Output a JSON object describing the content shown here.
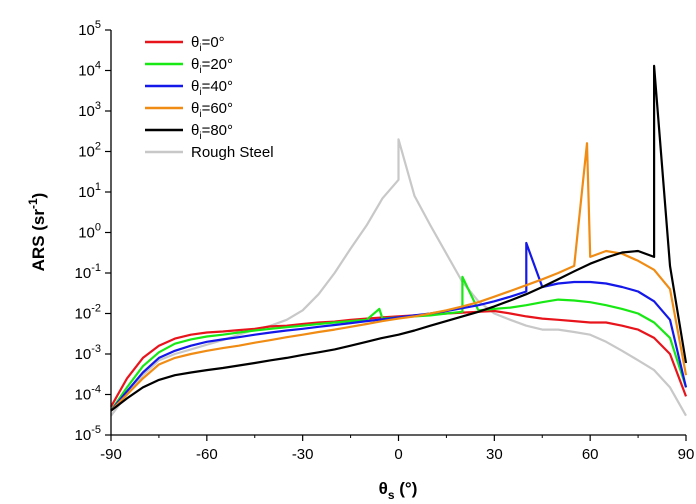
{
  "chart_data": {
    "type": "line",
    "title": "",
    "xlabel": "θs (°)",
    "ylabel": "ARS (sr⁻¹)",
    "xlim": [
      -90,
      90
    ],
    "ylim_log10": [
      -5,
      5
    ],
    "yscale": "log",
    "x_ticks": [
      "-90",
      "-60",
      "-30",
      "0",
      "30",
      "60",
      "90"
    ],
    "x_tick_values": [
      -90,
      -60,
      -30,
      0,
      30,
      60,
      90
    ],
    "y_ticks": [
      "10-5",
      "10-4",
      "10-3",
      "10-2",
      "10-1",
      "100",
      "101",
      "102",
      "103",
      "104",
      "105"
    ],
    "grid": false,
    "legend_position": "top-left",
    "x": [
      -90,
      -85,
      -80,
      -75,
      -70,
      -65,
      -60,
      -55,
      -50,
      -45,
      -40,
      -35,
      -30,
      -25,
      -20,
      -15,
      -10,
      -5,
      0,
      5,
      10,
      15,
      20,
      25,
      30,
      35,
      40,
      45,
      50,
      55,
      60,
      65,
      70,
      75,
      80,
      85,
      90
    ],
    "series": [
      {
        "name": "θi=0°",
        "color": "#e8141c",
        "values": [
          5e-05,
          0.00025,
          0.0008,
          0.0016,
          0.0024,
          0.003,
          0.0034,
          0.0036,
          0.0039,
          0.0042,
          0.0048,
          0.005,
          0.0055,
          0.006,
          0.0063,
          0.007,
          0.0075,
          0.008,
          0.0085,
          0.009,
          0.0095,
          0.01,
          0.0105,
          0.011,
          0.0115,
          0.01,
          0.0085,
          0.0075,
          0.007,
          0.0065,
          0.006,
          0.006,
          0.005,
          0.004,
          0.0025,
          0.001,
          9e-05
        ],
        "spikes": []
      },
      {
        "name": "θi=20°",
        "color": "#18e814",
        "values": [
          4e-05,
          0.00015,
          0.0005,
          0.0011,
          0.0018,
          0.0023,
          0.0027,
          0.003,
          0.0034,
          0.0038,
          0.0042,
          0.0046,
          0.005,
          0.0055,
          0.006,
          0.0065,
          0.007,
          0.0075,
          0.008,
          0.0085,
          0.009,
          0.01,
          0.011,
          0.012,
          0.013,
          0.014,
          0.016,
          0.019,
          0.022,
          0.021,
          0.019,
          0.016,
          0.013,
          0.01,
          0.006,
          0.0025,
          0.00015
        ],
        "spikes": [
          [
            -6,
            0.013
          ],
          [
            20,
            0.08
          ]
        ]
      },
      {
        "name": "θi=40°",
        "color": "#1418e8",
        "values": [
          4e-05,
          0.00012,
          0.00035,
          0.0008,
          0.0012,
          0.0016,
          0.002,
          0.0023,
          0.0026,
          0.003,
          0.0034,
          0.0038,
          0.0042,
          0.0047,
          0.0052,
          0.0058,
          0.0065,
          0.0072,
          0.008,
          0.009,
          0.01,
          0.0115,
          0.0135,
          0.016,
          0.02,
          0.026,
          0.035,
          0.045,
          0.055,
          0.06,
          0.06,
          0.055,
          0.045,
          0.035,
          0.02,
          0.007,
          0.00015
        ],
        "spikes": [
          [
            40,
            0.55
          ]
        ]
      },
      {
        "name": "θi=60°",
        "color": "#f08c14",
        "values": [
          4e-05,
          0.0001,
          0.00025,
          0.00055,
          0.0008,
          0.001,
          0.0012,
          0.0014,
          0.0016,
          0.0019,
          0.0022,
          0.0026,
          0.003,
          0.0035,
          0.004,
          0.0047,
          0.0055,
          0.0065,
          0.0075,
          0.0085,
          0.01,
          0.012,
          0.015,
          0.019,
          0.026,
          0.036,
          0.05,
          0.07,
          0.1,
          0.15,
          0.25,
          0.35,
          0.3,
          0.2,
          0.12,
          0.04,
          0.0003
        ],
        "spikes": [
          [
            59,
            160
          ]
        ]
      },
      {
        "name": "θi=80°",
        "color": "#000000",
        "values": [
          4e-05,
          8e-05,
          0.00015,
          0.00023,
          0.0003,
          0.00035,
          0.0004,
          0.00045,
          0.00052,
          0.0006,
          0.0007,
          0.0008,
          0.00095,
          0.0011,
          0.0013,
          0.0016,
          0.002,
          0.0025,
          0.003,
          0.0038,
          0.005,
          0.0065,
          0.0085,
          0.011,
          0.015,
          0.021,
          0.03,
          0.045,
          0.07,
          0.11,
          0.17,
          0.24,
          0.32,
          0.35,
          0.25,
          0.15,
          0.0006
        ],
        "spikes": [
          [
            80,
            13000
          ]
        ]
      },
      {
        "name": "Rough Steel",
        "color": "#c8c8c8",
        "values": [
          3e-05,
          0.0001,
          0.0003,
          0.0007,
          0.001,
          0.0013,
          0.0017,
          0.0022,
          0.003,
          0.004,
          0.005,
          0.007,
          0.012,
          0.03,
          0.1,
          0.4,
          1.5,
          7,
          20,
          8,
          1.5,
          0.3,
          0.06,
          0.02,
          0.01,
          0.007,
          0.005,
          0.004,
          0.004,
          0.0035,
          0.003,
          0.002,
          0.0012,
          0.0007,
          0.0004,
          0.00015,
          3e-05
        ],
        "spikes": [
          [
            0,
            200
          ]
        ]
      }
    ]
  }
}
